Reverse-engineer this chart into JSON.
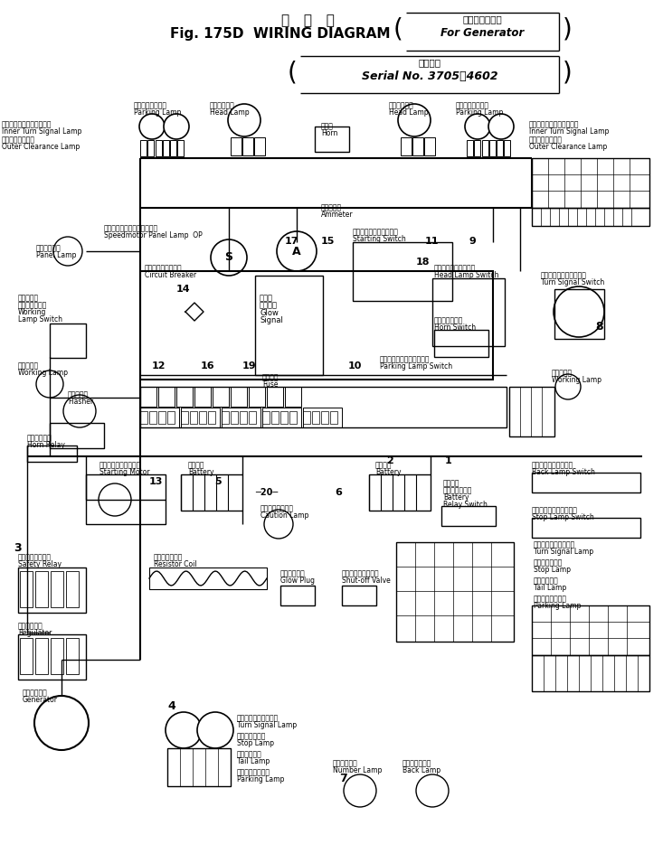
{
  "fig_width": 7.33,
  "fig_height": 9.55,
  "dpi": 100,
  "bg": "#ffffff",
  "title_line1_jp": "配   線   図",
  "title_line1_en": "Fig. 175D  WIRING DIAGRAM",
  "bracket1_jp": "ジェネレータ用",
  "bracket1_en": "For Generator",
  "bracket2_jp": "適用号機",
  "bracket2_en": "Serial No. 3705～4602",
  "labels": {
    "parking_lamp_left": [
      "パーキングランプ",
      "Parking Lamp"
    ],
    "head_lamp_left": [
      "ヘッドランプ",
      "Head Lamp"
    ],
    "horn": [
      "ホーン",
      "Horn"
    ],
    "head_lamp_right": [
      "ヘッドランプ",
      "Head Lamp"
    ],
    "parking_lamp_right": [
      "パーキングランプ",
      "Parking Lamp"
    ],
    "inner_turn_left": [
      "内側ターンシグナルランプ",
      "Inner Turn Signal Lamp"
    ],
    "outer_clear_left": [
      "外側　車　幅　灯",
      "Outer Clearance Lamp"
    ],
    "inner_turn_right": [
      "内側ターンシグナルランプ",
      "Inner Turn Signal Lamp"
    ],
    "outer_clear_right": [
      "外側　車　幅　灯",
      "Outer Clearance Lamp"
    ],
    "ammeter": [
      "アンメータ",
      "Ammeter"
    ],
    "speedometer": [
      "スピードメータパネルランプ",
      "Speedmotor Panel Lamp  OP"
    ],
    "panel_lamp": [
      "パネルランプ",
      "Panel Lamp"
    ],
    "circuit_breaker": [
      "サーキットブレーカ",
      "Circuit Breaker"
    ],
    "glow_signal": [
      "グローシグナル",
      "Glow Signal"
    ],
    "starting_switch": [
      "スターティングスイッチ",
      "Starting Switch"
    ],
    "head_lamp_sw": [
      "ヘッドランプスイッチ",
      "Head Lamp Switch"
    ],
    "horn_switch": [
      "ホーンスイッチ",
      "Horn Switch"
    ],
    "turn_signal_sw": [
      "ターンシグナルスイッチ",
      "Turn Signal Switch"
    ],
    "working_lamp_sw": [
      "ワーキングランプスイッチ",
      "Working Lamp Switch"
    ],
    "working_lamp_l": [
      "作　業　灯",
      "Working Lamp"
    ],
    "working_lamp_r": [
      "作　業　灯",
      "Working Lamp"
    ],
    "parking_lamp_sw": [
      "パーキングランプスイッチ",
      "Parking Lamp Switch"
    ],
    "flasher": [
      "フラッシャ",
      "Flasher"
    ],
    "fuse": [
      "ヒューズ",
      "Fuse"
    ],
    "horn_relay": [
      "ホーンリレー",
      "Horn Relay"
    ],
    "starting_motor": [
      "スターティングモータ",
      "Starting Motor"
    ],
    "battery_l": [
      "バッテリ",
      "Battery"
    ],
    "caution_lamp": [
      "コーションランプ",
      "Caution Lamp"
    ],
    "battery_r": [
      "バッテリ",
      "Battery"
    ],
    "battery_relay": [
      "バッテリリレースイッチ",
      "Battery Relay Switch"
    ],
    "back_lamp_sw": [
      "バックランプスイッチ",
      "Back Lamp Switch"
    ],
    "stop_lamp_sw": [
      "ストップランプスイッチ",
      "Stop Lamp Switch"
    ],
    "safety_relay": [
      "セーフティリレー",
      "Safety Relay"
    ],
    "resistor_coil": [
      "レジスタコイル",
      "Resistor Coil"
    ],
    "glow_plug": [
      "グロープラグ",
      "Glow Plug"
    ],
    "shutoff_valve": [
      "シャットオフバルブ",
      "Shut-off Valve"
    ],
    "turn_signal_r": [
      "ターンシグナルランプ",
      "Turn Signal Lamp"
    ],
    "stop_lamp_r": [
      "ストップランプ",
      "Stop Lamp"
    ],
    "tail_lamp_r": [
      "テールランプ",
      "Tail Lamp"
    ],
    "parking_lamp_r2": [
      "パーキングランプ",
      "Parking Lamp"
    ],
    "regulator": [
      "レギュレータ",
      "Regulator"
    ],
    "generator": [
      "ジェネレータ",
      "Generator"
    ],
    "turn_signal_b": [
      "ターンシグナルランプ",
      "Turn Signal Lamp"
    ],
    "stop_lamp_b": [
      "ストップランプ",
      "Stop Lamp"
    ],
    "tail_lamp_b": [
      "テールランプ",
      "Tail Lamp"
    ],
    "parking_lamp_b": [
      "パーキングランプ",
      "Parking Lamp"
    ],
    "number_lamp": [
      "ナンバランプ",
      "Number Lamp"
    ],
    "back_lamp_b": [
      "バック　ランプ",
      "Back Lamp"
    ]
  }
}
